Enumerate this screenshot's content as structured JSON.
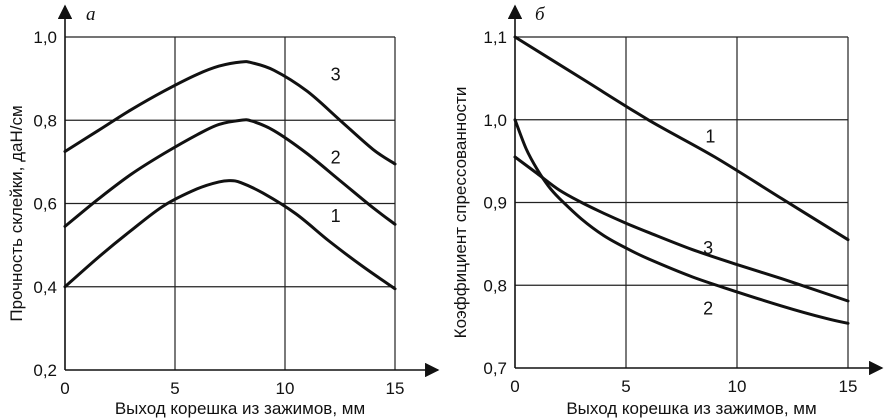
{
  "chart_data": [
    {
      "type": "line",
      "panel_label": "а",
      "title": "",
      "xlabel": "Выход корешка из зажимов, мм",
      "ylabel": "Прочность склейки, даН/см",
      "xlim": [
        0,
        15
      ],
      "ylim": [
        0.2,
        1.0
      ],
      "x_ticks": [
        "0",
        "5",
        "10",
        "15"
      ],
      "x_tick_values": [
        0,
        5,
        10,
        15
      ],
      "y_ticks": [
        "0,2",
        "0,4",
        "0,6",
        "0,8",
        "1,0"
      ],
      "y_tick_values": [
        0.2,
        0.4,
        0.6,
        0.8,
        1.0
      ],
      "grid": true,
      "series": [
        {
          "name": "1",
          "label_at": [
            12.3,
            0.57
          ],
          "x": [
            0,
            1.5,
            3,
            4.5,
            6,
            7,
            7.5,
            8,
            9,
            10.5,
            12,
            13.5,
            15
          ],
          "y": [
            0.4,
            0.47,
            0.535,
            0.595,
            0.635,
            0.652,
            0.655,
            0.65,
            0.625,
            0.575,
            0.51,
            0.45,
            0.395
          ]
        },
        {
          "name": "2",
          "label_at": [
            12.3,
            0.71
          ],
          "x": [
            0,
            1.5,
            3,
            4.5,
            6,
            7,
            8,
            8.5,
            9.5,
            11,
            12.5,
            14,
            15
          ],
          "y": [
            0.545,
            0.61,
            0.67,
            0.72,
            0.765,
            0.79,
            0.8,
            0.798,
            0.775,
            0.72,
            0.655,
            0.59,
            0.55
          ]
        },
        {
          "name": "3",
          "label_at": [
            12.3,
            0.91
          ],
          "x": [
            0,
            1.5,
            3,
            4.5,
            6,
            7,
            8,
            8.5,
            9.5,
            11,
            12.5,
            14,
            15
          ],
          "y": [
            0.725,
            0.775,
            0.825,
            0.87,
            0.91,
            0.93,
            0.94,
            0.938,
            0.92,
            0.87,
            0.8,
            0.73,
            0.695
          ]
        }
      ]
    },
    {
      "type": "line",
      "panel_label": "б",
      "title": "",
      "xlabel": "Выход корешка из зажимов, мм",
      "ylabel": "Коэффициент спрессованности",
      "xlim": [
        0,
        15
      ],
      "ylim": [
        0.7,
        1.1
      ],
      "x_ticks": [
        "0",
        "5",
        "10",
        "15"
      ],
      "x_tick_values": [
        0,
        5,
        10,
        15
      ],
      "y_ticks": [
        "0,7",
        "0,8",
        "0,9",
        "1,0",
        "1,1"
      ],
      "y_tick_values": [
        0.7,
        0.8,
        0.9,
        1.0,
        1.1
      ],
      "grid": true,
      "series": [
        {
          "name": "1",
          "label_at": [
            8.8,
            0.98
          ],
          "x": [
            0,
            3,
            6,
            9,
            12,
            15
          ],
          "y": [
            1.1,
            1.05,
            1.0,
            0.955,
            0.905,
            0.855
          ]
        },
        {
          "name": "2",
          "label_at": [
            8.7,
            0.772
          ],
          "x": [
            0,
            0.5,
            1,
            1.5,
            2,
            3,
            4,
            5,
            6,
            8,
            10,
            12,
            14,
            15
          ],
          "y": [
            1.0,
            0.965,
            0.94,
            0.92,
            0.905,
            0.88,
            0.86,
            0.845,
            0.832,
            0.81,
            0.792,
            0.775,
            0.76,
            0.754
          ]
        },
        {
          "name": "3",
          "label_at": [
            8.7,
            0.845
          ],
          "x": [
            0,
            1,
            2,
            3,
            4,
            5,
            6,
            8,
            10,
            12,
            14,
            15
          ],
          "y": [
            0.955,
            0.935,
            0.915,
            0.9,
            0.887,
            0.875,
            0.864,
            0.843,
            0.825,
            0.808,
            0.79,
            0.781
          ]
        }
      ]
    }
  ]
}
